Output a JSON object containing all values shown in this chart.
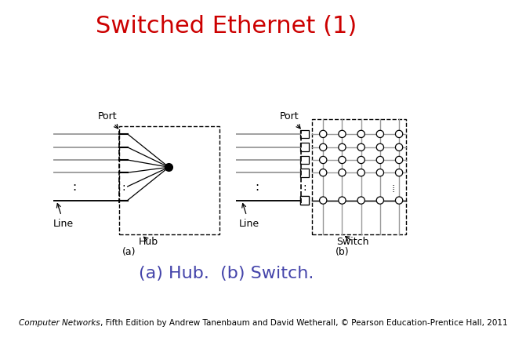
{
  "title": "Switched Ethernet (1)",
  "title_color": "#cc0000",
  "title_fontsize": 22,
  "subtitle": "(a) Hub.  (b) Switch.",
  "subtitle_color": "#4444aa",
  "subtitle_fontsize": 16,
  "footer_italic": "Computer Networks",
  "footer_normal": ", Fifth Edition by Andrew Tanenbaum and David Wetherall, © Pearson Education-Prentice Hall, 2011",
  "footer_fontsize": 7.5,
  "bg_color": "#ffffff",
  "line_color": "#999999",
  "black": "#000000"
}
